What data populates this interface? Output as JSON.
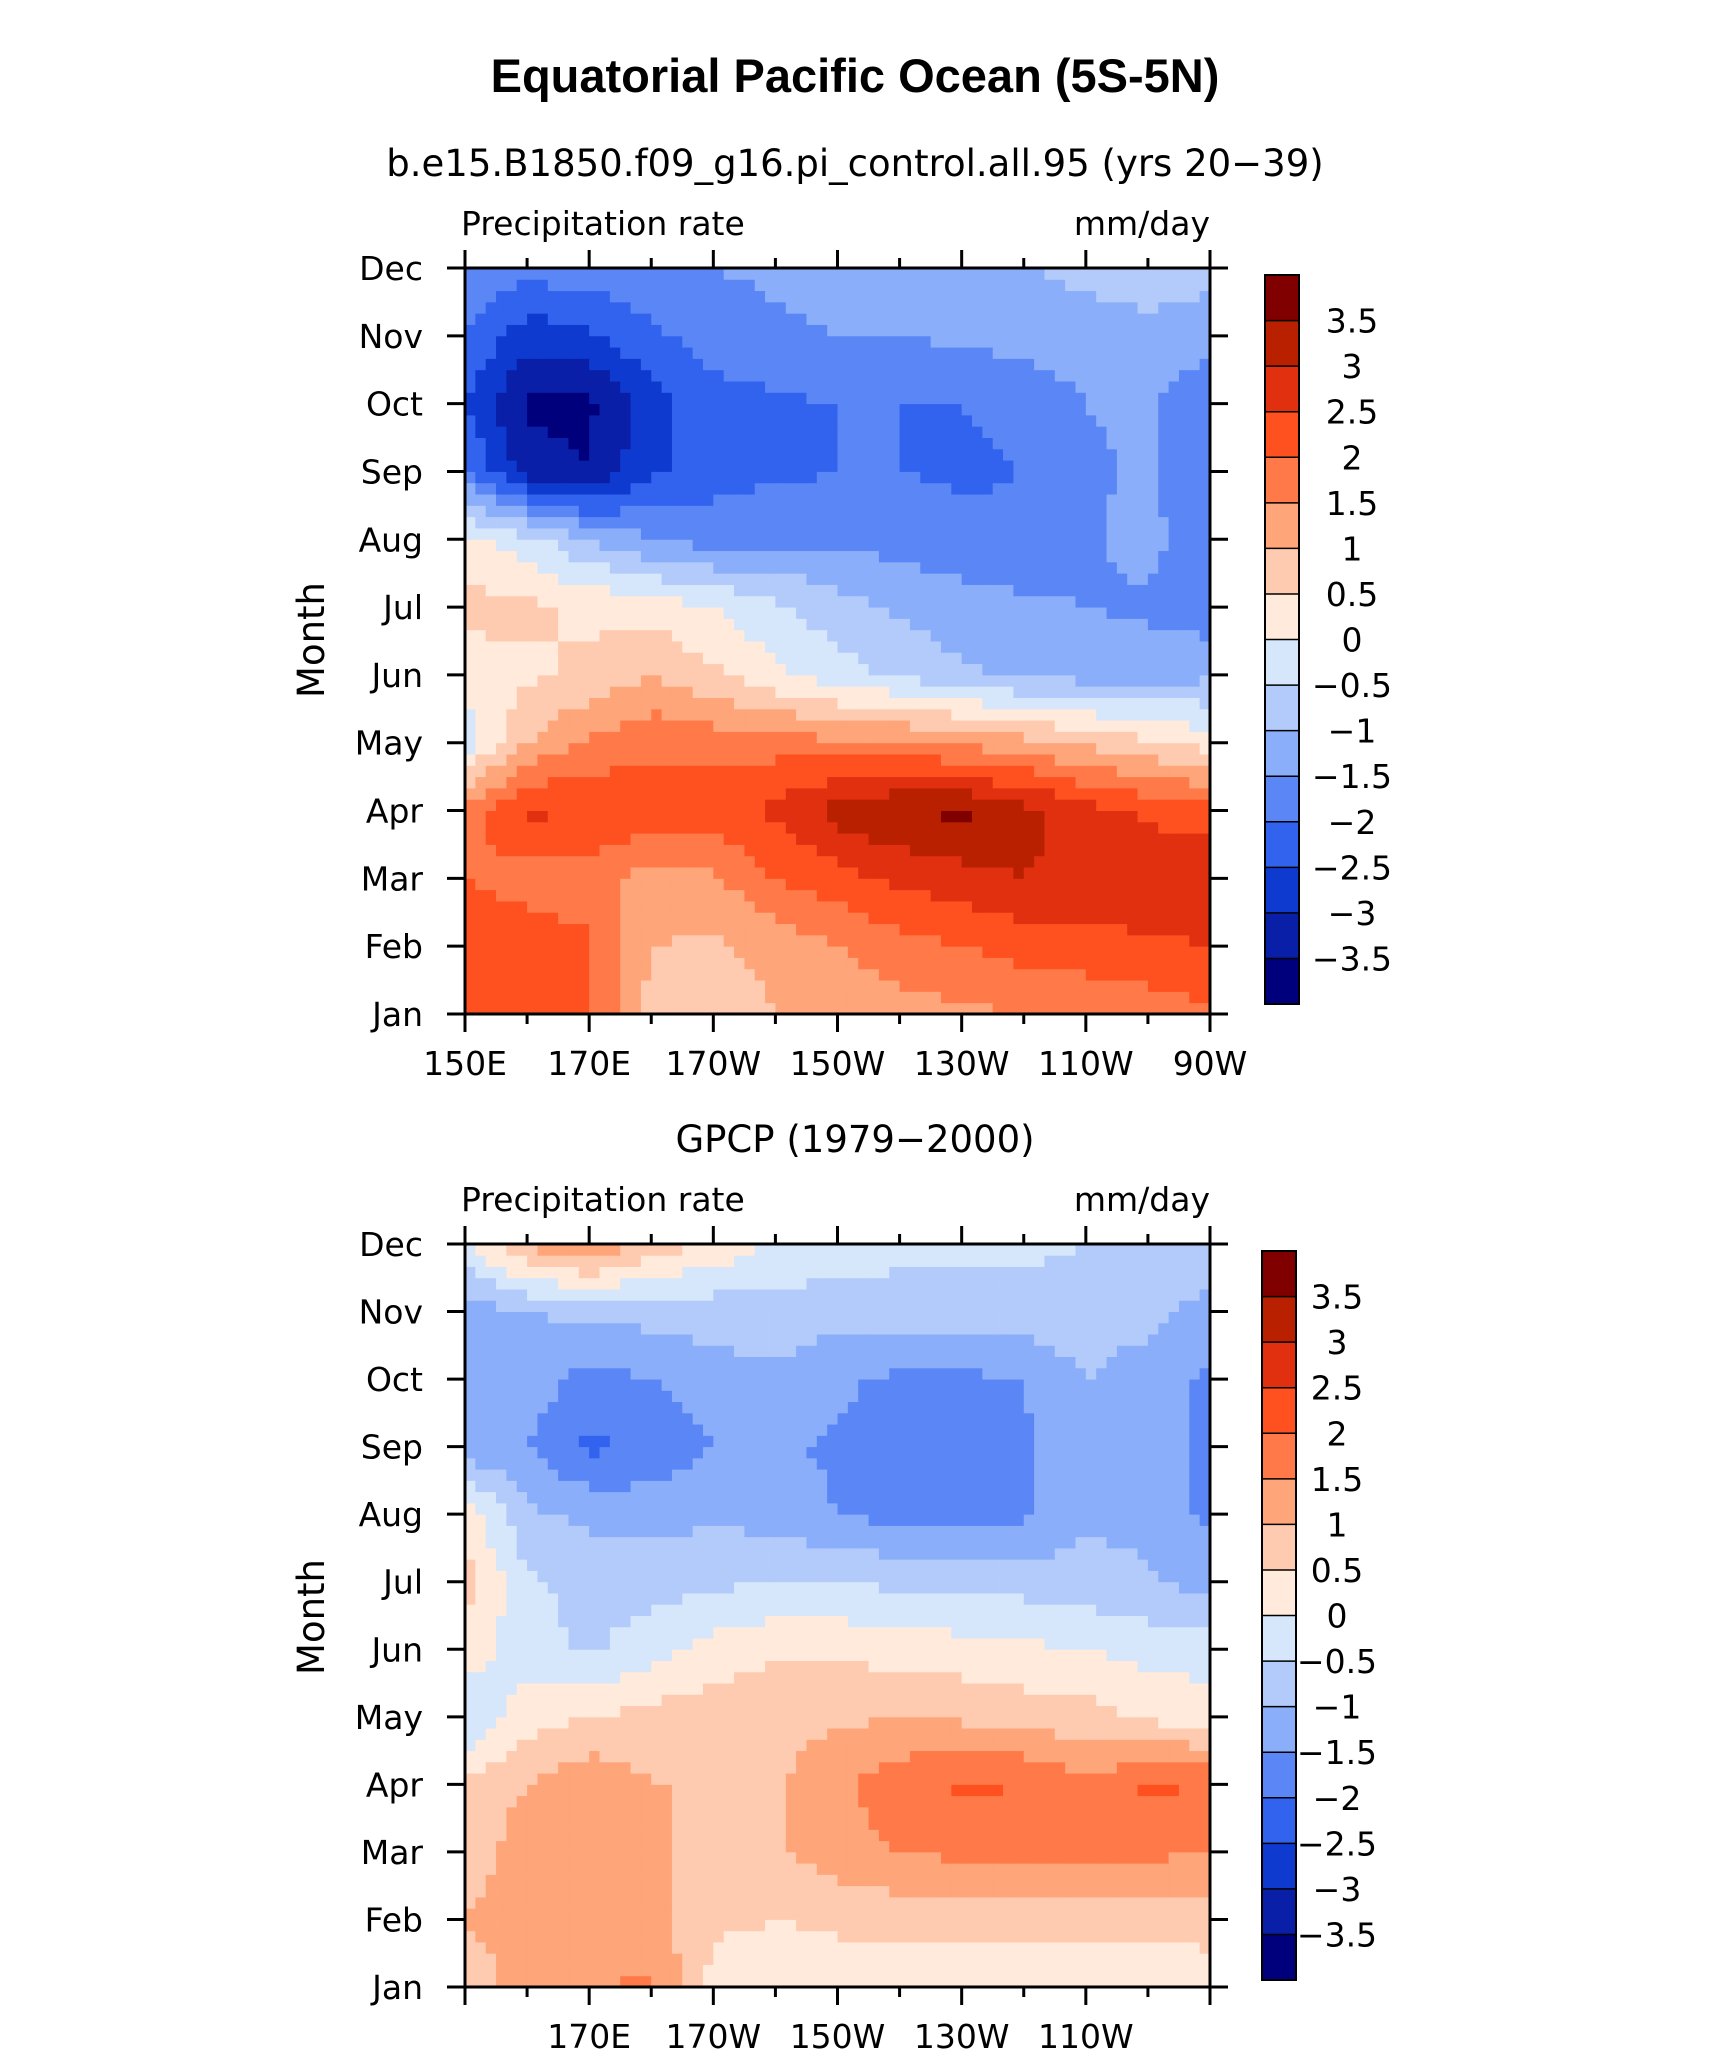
{
  "figure": {
    "title": "Equatorial Pacific Ocean (5S-5N)"
  },
  "colorbar": {
    "levels": [
      "3.5",
      "3",
      "2.5",
      "2",
      "1.5",
      "1",
      "0.5",
      "0",
      "−0.5",
      "−1",
      "−1.5",
      "−2",
      "−2.5",
      "−3",
      "−3.5"
    ],
    "colors": [
      "#800000",
      "#b82000",
      "#e03010",
      "#ff5020",
      "#ff7a48",
      "#ffa57a",
      "#ffcbb0",
      "#ffeadb",
      "#d6e6fb",
      "#b3cbfb",
      "#8aaefa",
      "#5a86f6",
      "#3263ee",
      "#0f3ad0",
      "#0a1fa8",
      "#00007c"
    ]
  },
  "chart_data": [
    {
      "type": "heatmap",
      "title": "b.e15.B1850.f09_g16.pi_control.all.95 (yrs 20−39)",
      "variable": "Precipitation rate",
      "units": "mm/day",
      "ylabel": "Month",
      "x_ticks": [
        "150E",
        "170E",
        "170W",
        "150W",
        "130W",
        "110W",
        "90W"
      ],
      "y_ticks": [
        "Jan",
        "Feb",
        "Mar",
        "Apr",
        "May",
        "Jun",
        "Jul",
        "Aug",
        "Sep",
        "Oct",
        "Nov",
        "Dec"
      ],
      "x_lon": [
        150,
        160,
        170,
        180,
        190,
        200,
        210,
        220,
        230,
        240,
        250,
        260,
        270
      ],
      "y_month": [
        "Jan",
        "Feb",
        "Mar",
        "Apr",
        "May",
        "Jun",
        "Jul",
        "Aug",
        "Sep",
        "Oct",
        "Nov",
        "Dec"
      ],
      "z": [
        [
          2.2,
          2.4,
          2.0,
          0.8,
          0.6,
          1.0,
          1.1,
          1.3,
          1.4,
          1.5,
          1.6,
          1.7,
          1.9
        ],
        [
          2.3,
          2.3,
          2.1,
          1.0,
          0.9,
          1.2,
          1.5,
          1.8,
          2.0,
          2.2,
          2.3,
          2.4,
          2.5
        ],
        [
          2.0,
          1.8,
          1.7,
          1.3,
          1.4,
          2.0,
          2.3,
          2.6,
          2.8,
          3.0,
          2.8,
          2.9,
          2.9
        ],
        [
          1.7,
          2.6,
          2.5,
          2.3,
          2.3,
          2.6,
          3.2,
          3.5,
          3.6,
          3.2,
          2.7,
          2.4,
          2.2
        ],
        [
          -0.3,
          1.0,
          1.6,
          1.9,
          1.8,
          1.8,
          1.6,
          1.6,
          1.4,
          1.2,
          0.9,
          0.6,
          0.3
        ],
        [
          0.2,
          0.4,
          0.6,
          1.0,
          0.6,
          0.1,
          -0.3,
          -0.6,
          -0.9,
          -1.1,
          -1.2,
          -1.2,
          -1.1
        ],
        [
          0.7,
          0.6,
          0.4,
          0.3,
          0.0,
          -0.4,
          -0.8,
          -1.1,
          -1.3,
          -1.4,
          -1.5,
          -1.6,
          -1.8
        ],
        [
          0.2,
          -0.3,
          -1.0,
          -1.5,
          -1.7,
          -1.6,
          -1.6,
          -1.7,
          -1.8,
          -1.9,
          -1.6,
          -1.3,
          -2.0
        ],
        [
          -1.9,
          -3.3,
          -3.5,
          -2.6,
          -2.2,
          -2.1,
          -2.0,
          -2.0,
          -2.1,
          -2.0,
          -1.6,
          -1.4,
          -2.0
        ],
        [
          -2.5,
          -3.6,
          -3.6,
          -2.7,
          -2.2,
          -2.1,
          -2.0,
          -2.0,
          -2.0,
          -1.9,
          -1.5,
          -1.4,
          -2.0
        ],
        [
          -2.0,
          -2.8,
          -2.6,
          -2.1,
          -1.8,
          -1.6,
          -1.5,
          -1.5,
          -1.4,
          -1.3,
          -1.2,
          -1.1,
          -1.3
        ],
        [
          -1.6,
          -1.8,
          -1.7,
          -1.6,
          -1.5,
          -1.4,
          -1.3,
          -1.2,
          -1.1,
          -1.0,
          -0.9,
          -0.8,
          -0.8
        ]
      ]
    },
    {
      "type": "heatmap",
      "title": "GPCP (1979−2000)",
      "variable": "Precipitation rate",
      "units": "mm/day",
      "ylabel": "Month",
      "x_ticks": [
        "",
        "170E",
        "170W",
        "150W",
        "130W",
        "110W",
        ""
      ],
      "y_ticks": [
        "Jan",
        "Feb",
        "Mar",
        "Apr",
        "May",
        "Jun",
        "Jul",
        "Aug",
        "Sep",
        "Oct",
        "Nov",
        "Dec"
      ],
      "x_lon": [
        150,
        160,
        170,
        180,
        190,
        200,
        210,
        220,
        230,
        240,
        250,
        260,
        270
      ],
      "y_month": [
        "Jan",
        "Feb",
        "Mar",
        "Apr",
        "May",
        "Jun",
        "Jul",
        "Aug",
        "Sep",
        "Oct",
        "Nov",
        "Dec"
      ],
      "z": [
        [
          0.7,
          1.2,
          1.4,
          1.6,
          0.3,
          0.2,
          0.2,
          0.2,
          0.1,
          0.1,
          0.1,
          0.1,
          0.1
        ],
        [
          1.0,
          1.3,
          1.5,
          1.2,
          0.6,
          0.5,
          0.6,
          0.7,
          0.7,
          0.7,
          0.7,
          0.7,
          0.8
        ],
        [
          0.7,
          1.3,
          1.4,
          1.1,
          0.8,
          0.9,
          1.3,
          1.5,
          1.6,
          1.6,
          1.6,
          1.6,
          1.5
        ],
        [
          0.6,
          1.0,
          1.4,
          1.0,
          1.0,
          0.9,
          1.4,
          1.8,
          2.1,
          2.0,
          1.6,
          2.1,
          2.0
        ],
        [
          -0.6,
          0.3,
          0.5,
          0.7,
          0.8,
          0.9,
          0.9,
          1.0,
          0.9,
          0.8,
          0.7,
          0.4,
          0.2
        ],
        [
          0.3,
          -0.3,
          -0.6,
          -0.2,
          0.2,
          0.4,
          0.4,
          0.3,
          0.2,
          0.1,
          0.0,
          -0.2,
          -0.2
        ],
        [
          0.7,
          -0.4,
          -0.7,
          -0.7,
          -0.6,
          -0.5,
          -0.5,
          -0.6,
          -0.7,
          -0.7,
          -0.8,
          -0.9,
          -1.2
        ],
        [
          0.3,
          -0.9,
          -1.1,
          -1.2,
          -1.1,
          -1.2,
          -1.5,
          -1.7,
          -1.7,
          -1.6,
          -1.1,
          -1.2,
          -1.6
        ],
        [
          -1.3,
          -1.5,
          -2.1,
          -1.9,
          -1.5,
          -1.4,
          -1.6,
          -1.8,
          -1.8,
          -1.6,
          -1.1,
          -1.3,
          -1.6
        ],
        [
          -1.2,
          -1.2,
          -1.7,
          -1.5,
          -1.2,
          -1.1,
          -1.4,
          -1.6,
          -1.6,
          -1.5,
          -1.0,
          -1.3,
          -1.6
        ],
        [
          -1.3,
          -1.0,
          -0.9,
          -0.8,
          -0.8,
          -0.7,
          -0.8,
          -0.8,
          -0.8,
          -0.7,
          -0.7,
          -0.8,
          -1.2
        ],
        [
          -0.1,
          1.1,
          1.6,
          0.8,
          0.4,
          -0.1,
          -0.2,
          -0.3,
          -0.4,
          -0.4,
          -0.5,
          -0.6,
          -0.7
        ]
      ]
    }
  ]
}
